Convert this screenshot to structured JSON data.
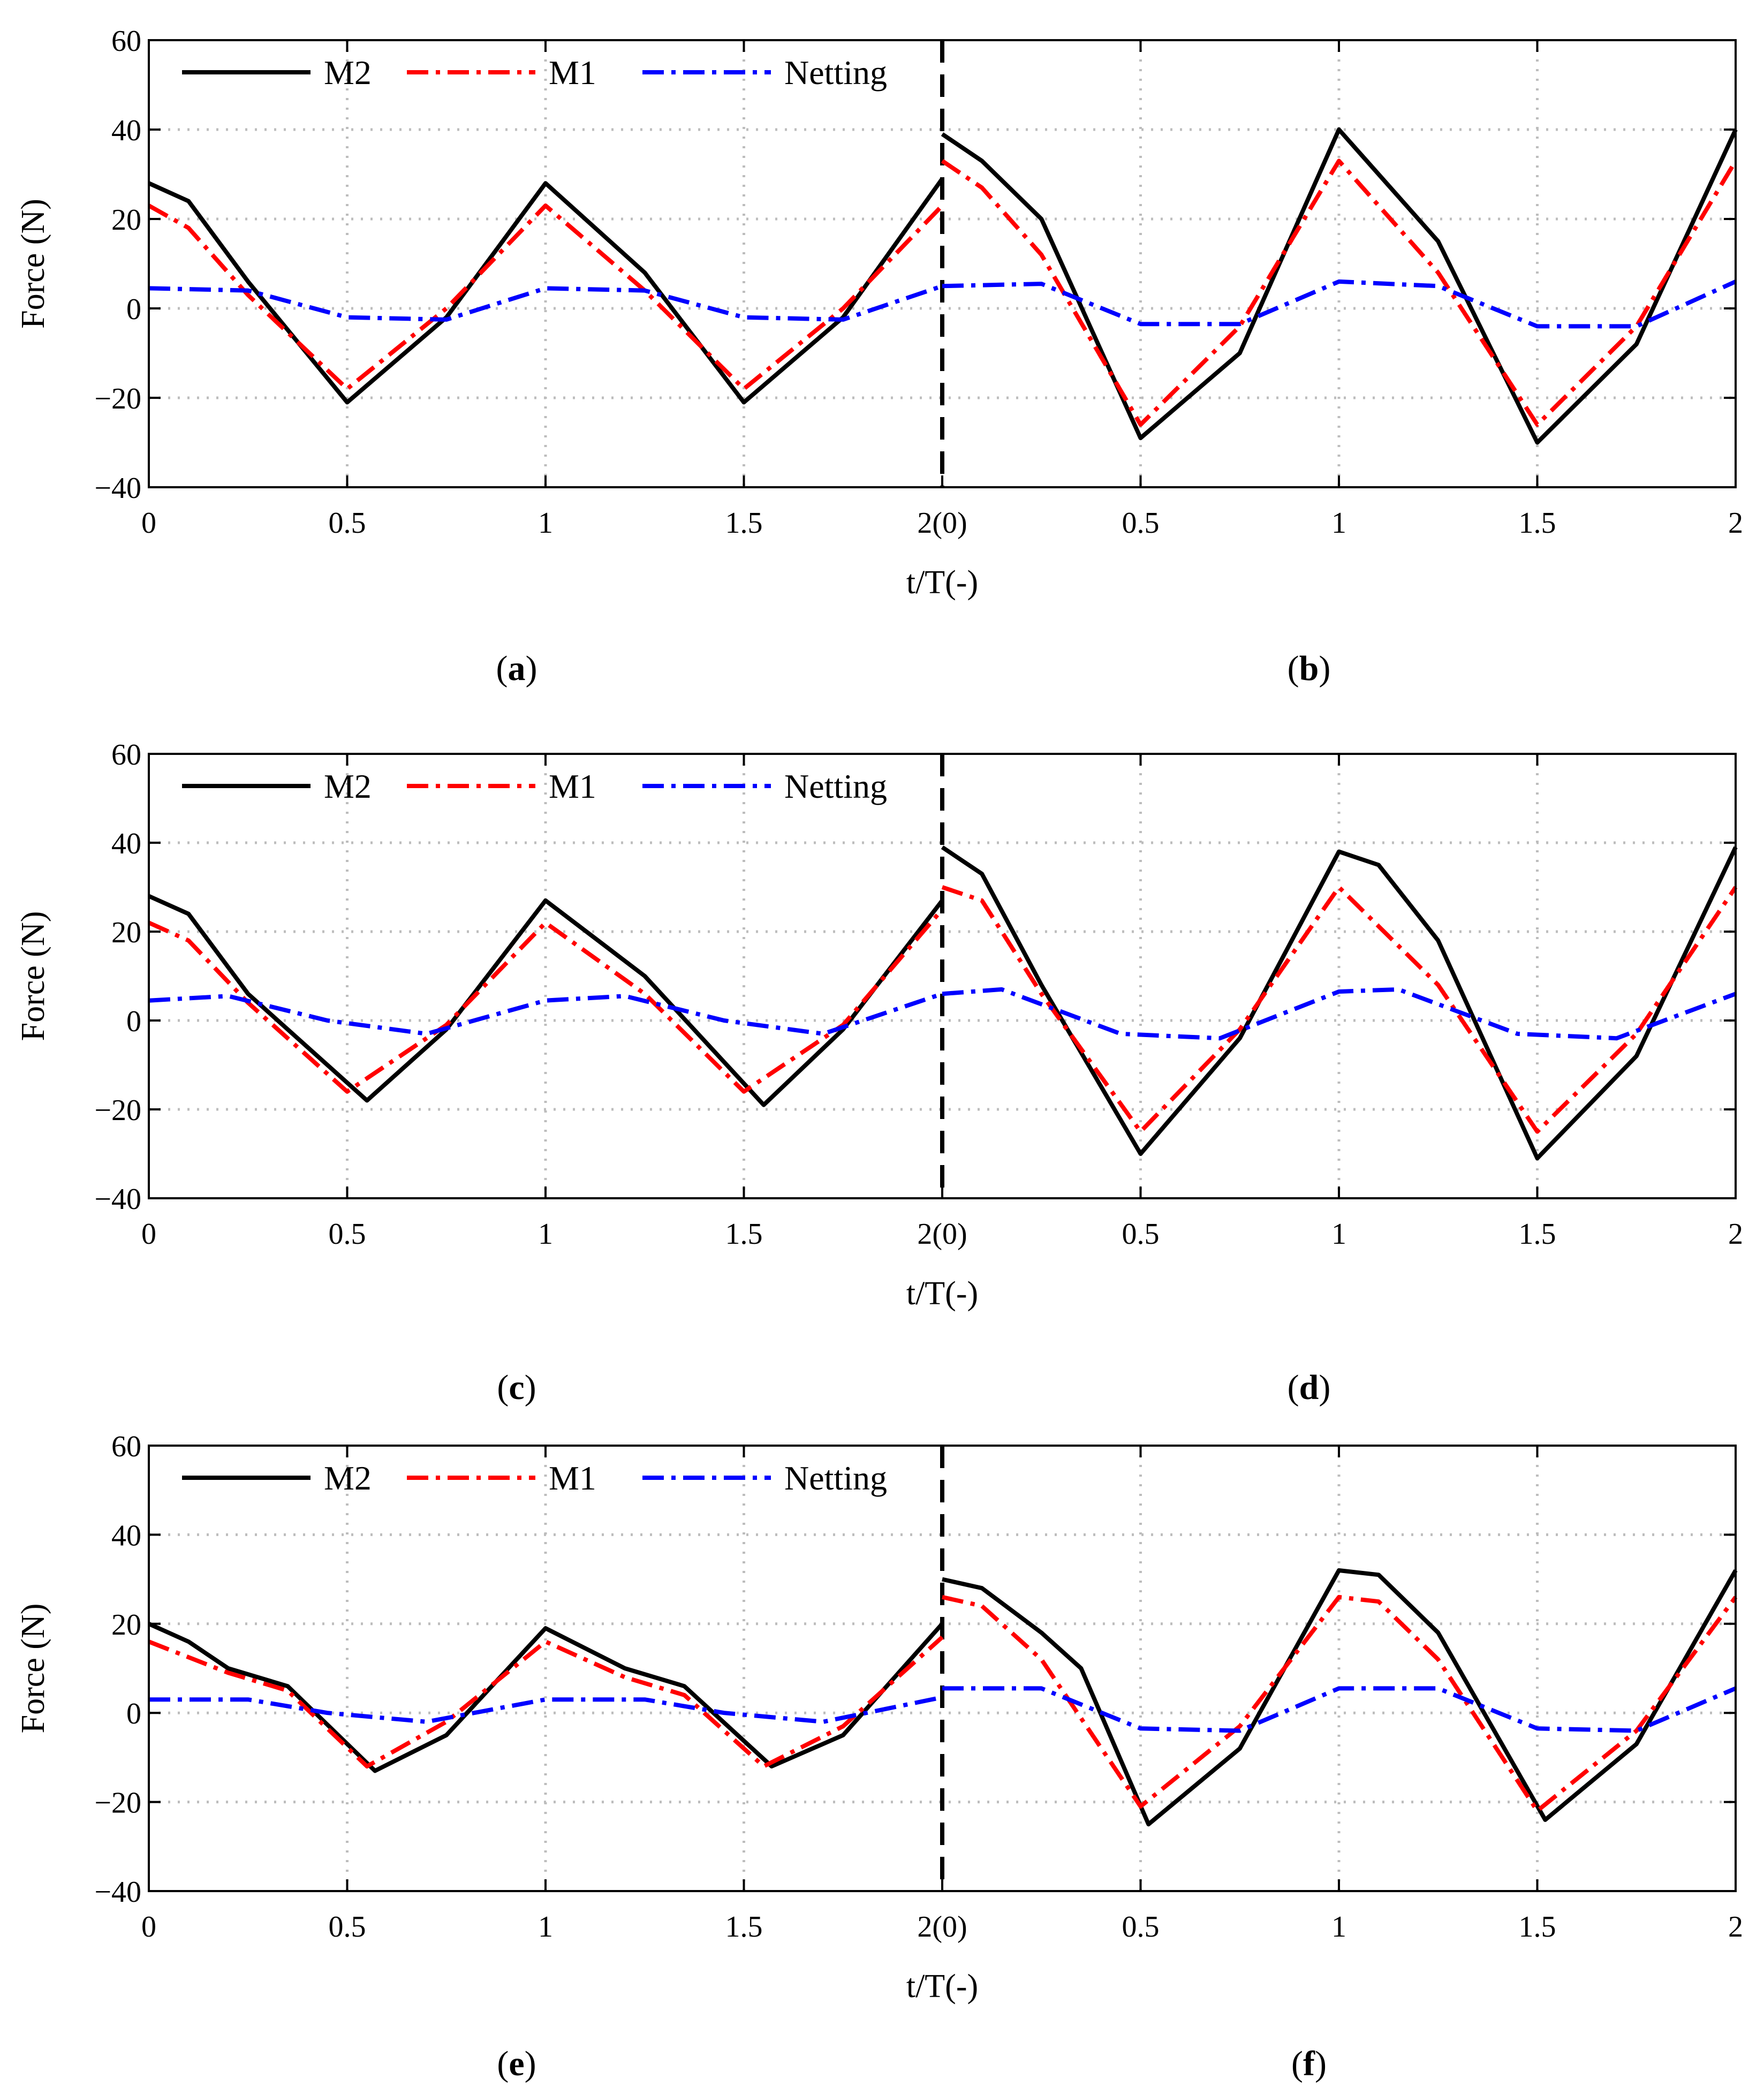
{
  "chart_data": [
    {
      "type": "line",
      "row_id": "row-1",
      "panels": [
        "(a)",
        "(b)"
      ],
      "captions": [
        {
          "open": "(",
          "letter": "a",
          "close": ")"
        },
        {
          "open": "(",
          "letter": "b",
          "close": ")"
        }
      ],
      "xlabel": "t/T(-)",
      "ylabel": "Force (N)",
      "ylim": [
        -40,
        60
      ],
      "yticks": [
        "60",
        "40",
        "20",
        "0",
        "−20",
        "−40"
      ],
      "xlim": [
        0,
        4
      ],
      "xtick_labels": [
        "0",
        "0.5",
        "1",
        "1.5",
        "2(0)",
        "0.5",
        "1",
        "1.5",
        "2"
      ],
      "grid": true,
      "legend": {
        "placement": "top-left",
        "entries": [
          "M2",
          "M1",
          "Netting"
        ]
      },
      "series": [
        {
          "name": "M2",
          "color": "#000000",
          "style": "solid",
          "x": [
            0,
            0.1,
            0.25,
            0.5,
            0.75,
            1.0,
            1.25,
            1.5,
            1.75,
            2.0,
            2.0,
            2.1,
            2.25,
            2.5,
            2.75,
            3.0,
            3.25,
            3.5,
            3.75,
            4.0
          ],
          "y": [
            28,
            24,
            6,
            -21,
            -2,
            28,
            8,
            -21,
            -2,
            29,
            39,
            33,
            20,
            -29,
            -10,
            40,
            15,
            -30,
            -8,
            40
          ]
        },
        {
          "name": "M1",
          "color": "#ff0000",
          "style": "dashdot",
          "x": [
            0,
            0.1,
            0.25,
            0.5,
            0.75,
            1.0,
            1.25,
            1.5,
            1.75,
            2.0,
            2.0,
            2.1,
            2.25,
            2.5,
            2.75,
            3.0,
            3.25,
            3.5,
            3.75,
            4.0
          ],
          "y": [
            23,
            18,
            3,
            -18,
            0,
            23,
            4,
            -18,
            0,
            23,
            33,
            27,
            12,
            -26,
            -4,
            33,
            8,
            -26,
            -4,
            33
          ]
        },
        {
          "name": "Netting",
          "color": "#0000ff",
          "style": "dashdot",
          "x": [
            0,
            0.25,
            0.5,
            0.75,
            1.0,
            1.25,
            1.5,
            1.75,
            2.0,
            2.0,
            2.25,
            2.5,
            2.75,
            3.0,
            3.25,
            3.5,
            3.75,
            4.0
          ],
          "y": [
            4.5,
            4,
            -2,
            -2.5,
            4.5,
            4,
            -2,
            -2.5,
            5,
            5,
            5.5,
            -3.5,
            -3.5,
            6,
            5,
            -4,
            -4,
            6
          ]
        }
      ]
    },
    {
      "type": "line",
      "row_id": "row-2",
      "panels": [
        "(c)",
        "(d)"
      ],
      "captions": [
        {
          "open": "(",
          "letter": "c",
          "close": ")"
        },
        {
          "open": "(",
          "letter": "d",
          "close": ")"
        }
      ],
      "xlabel": "t/T(-)",
      "ylabel": "Force (N)",
      "ylim": [
        -40,
        60
      ],
      "yticks": [
        "60",
        "40",
        "20",
        "0",
        "−20",
        "−40"
      ],
      "xlim": [
        0,
        4
      ],
      "xtick_labels": [
        "0",
        "0.5",
        "1",
        "1.5",
        "2(0)",
        "0.5",
        "1",
        "1.5",
        "2"
      ],
      "grid": true,
      "legend": {
        "placement": "top-left",
        "entries": [
          "M2",
          "M1",
          "Netting"
        ]
      },
      "series": [
        {
          "name": "M2",
          "color": "#000000",
          "style": "solid",
          "x": [
            0,
            0.1,
            0.25,
            0.55,
            0.75,
            1.0,
            1.25,
            1.55,
            1.75,
            2.0,
            2.0,
            2.1,
            2.25,
            2.5,
            2.75,
            3.0,
            3.1,
            3.25,
            3.5,
            3.75,
            4.0
          ],
          "y": [
            28,
            24,
            6,
            -18,
            -2,
            27,
            10,
            -19,
            -2,
            27,
            39,
            33,
            8,
            -30,
            -4,
            38,
            35,
            18,
            -31,
            -8,
            39
          ]
        },
        {
          "name": "M1",
          "color": "#ff0000",
          "style": "dashdot",
          "x": [
            0,
            0.1,
            0.25,
            0.5,
            0.75,
            1.0,
            1.25,
            1.5,
            1.75,
            2.0,
            2.0,
            2.1,
            2.25,
            2.5,
            2.75,
            3.0,
            3.25,
            3.5,
            3.75,
            4.0
          ],
          "y": [
            22,
            18,
            4,
            -16,
            -1,
            22,
            6,
            -16,
            -1,
            25,
            30,
            27,
            6,
            -25,
            -2,
            30,
            8,
            -25,
            -3,
            30
          ]
        },
        {
          "name": "Netting",
          "color": "#0000ff",
          "style": "dashdot",
          "x": [
            0,
            0.2,
            0.45,
            0.7,
            1.0,
            1.2,
            1.45,
            1.7,
            2.0,
            2.0,
            2.15,
            2.45,
            2.7,
            3.0,
            3.15,
            3.45,
            3.7,
            4.0
          ],
          "y": [
            4.5,
            5.5,
            0,
            -3,
            4.5,
            5.5,
            0,
            -3,
            6,
            6,
            7,
            -3,
            -4,
            6.5,
            7,
            -3,
            -4,
            6
          ]
        }
      ]
    },
    {
      "type": "line",
      "row_id": "row-3",
      "panels": [
        "(e)",
        "(f)"
      ],
      "captions": [
        {
          "open": "(",
          "letter": "e",
          "close": ")"
        },
        {
          "open": "(",
          "letter": "f",
          "close": ")"
        }
      ],
      "xlabel": "t/T(-)",
      "ylabel": "Force (N)",
      "ylim": [
        -40,
        60
      ],
      "yticks": [
        "60",
        "40",
        "20",
        "0",
        "−20",
        "−40"
      ],
      "xlim": [
        0,
        4
      ],
      "xtick_labels": [
        "0",
        "0.5",
        "1",
        "1.5",
        "2(0)",
        "0.5",
        "1",
        "1.5",
        "2"
      ],
      "grid": true,
      "legend": {
        "placement": "top-left",
        "entries": [
          "M2",
          "M1",
          "Netting"
        ]
      },
      "series": [
        {
          "name": "M2",
          "color": "#000000",
          "style": "solid",
          "x": [
            0,
            0.1,
            0.2,
            0.35,
            0.57,
            0.75,
            1.0,
            1.2,
            1.35,
            1.57,
            1.75,
            2.0,
            2.0,
            2.1,
            2.25,
            2.35,
            2.52,
            2.75,
            3.0,
            3.1,
            3.25,
            3.52,
            3.75,
            4.0
          ],
          "y": [
            20,
            16,
            10,
            6,
            -13,
            -5,
            19,
            10,
            6,
            -12,
            -5,
            20,
            30,
            28,
            18,
            10,
            -25,
            -8,
            32,
            31,
            18,
            -24,
            -7,
            32
          ]
        },
        {
          "name": "M1",
          "color": "#ff0000",
          "style": "dashdot",
          "x": [
            0,
            0.2,
            0.35,
            0.55,
            0.75,
            1.0,
            1.2,
            1.35,
            1.55,
            1.75,
            2.0,
            2.0,
            2.1,
            2.25,
            2.5,
            2.75,
            3.0,
            3.1,
            3.25,
            3.5,
            3.75,
            4.0
          ],
          "y": [
            16,
            9,
            5,
            -12,
            -2,
            16,
            8,
            4,
            -12,
            -3,
            17,
            26,
            24,
            12,
            -21,
            -3,
            26,
            25,
            12,
            -22,
            -4,
            26
          ]
        },
        {
          "name": "Netting",
          "color": "#0000ff",
          "style": "dashdot",
          "x": [
            0,
            0.25,
            0.45,
            0.7,
            1.0,
            1.25,
            1.45,
            1.7,
            2.0,
            2.0,
            2.25,
            2.5,
            2.75,
            3.0,
            3.25,
            3.5,
            3.75,
            4.0
          ],
          "y": [
            3,
            3,
            0,
            -2,
            3,
            3,
            0,
            -2,
            3.5,
            5.5,
            5.5,
            -3.5,
            -4,
            5.5,
            5.5,
            -3.5,
            -4,
            5.5
          ]
        }
      ]
    }
  ]
}
